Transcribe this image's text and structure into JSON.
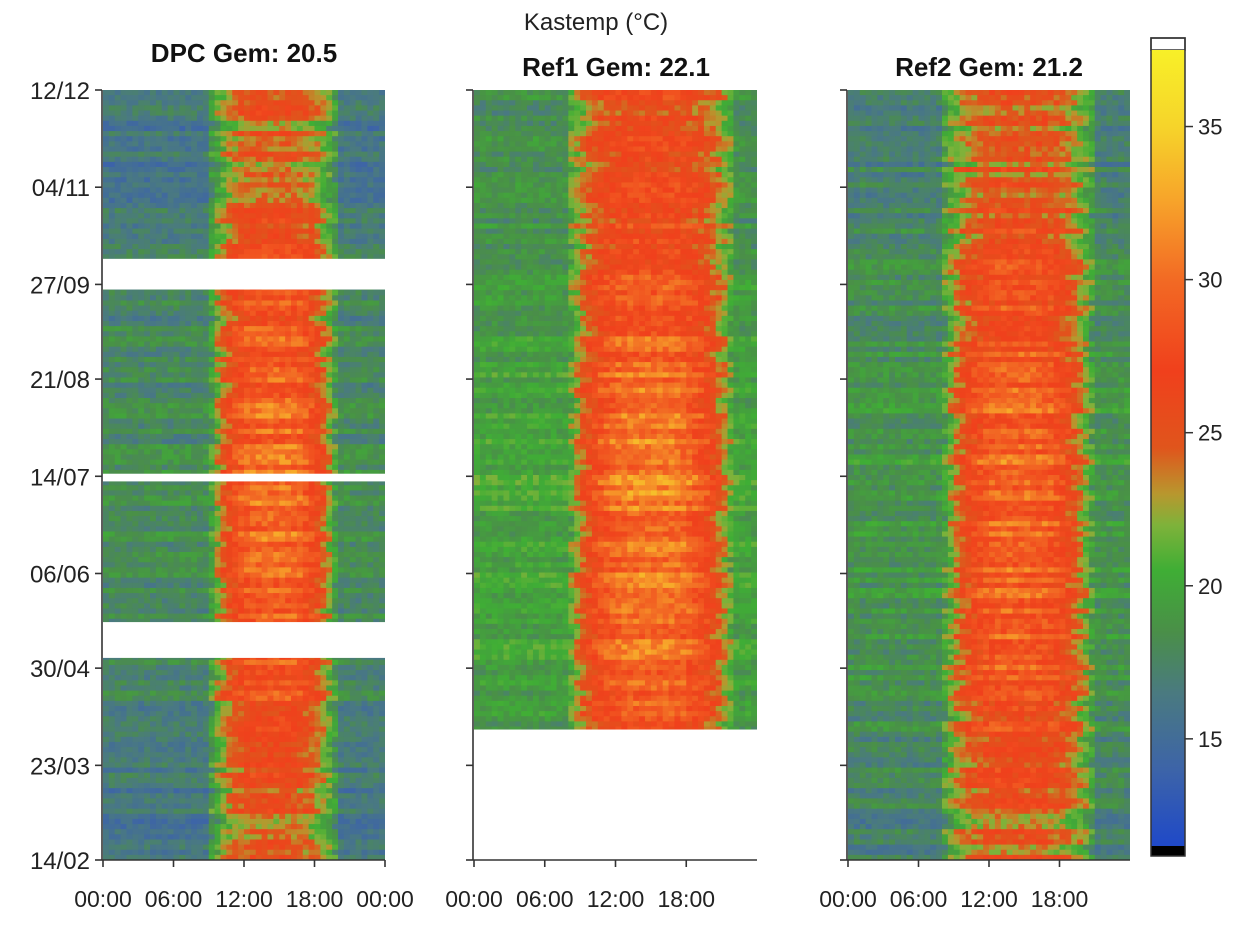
{
  "colorbar": {
    "label": "Kastemp (°C)",
    "range": [
      11.5,
      37.5
    ],
    "ticks": [
      15,
      20,
      25,
      30,
      35
    ],
    "colors": [
      "#1f49c8",
      "#3d64a8",
      "#4a7a80",
      "#4a8f48",
      "#3fae35",
      "#7fb23a",
      "#b8972e",
      "#e0551c",
      "#f0401c",
      "#f26a24",
      "#f7a22a",
      "#f6d42a",
      "#f8f028"
    ],
    "colorStops": [
      11.5,
      14,
      16.5,
      18.5,
      20.5,
      22,
      23,
      24.5,
      27,
      30,
      32.5,
      35,
      37.5
    ],
    "bottomCap": "#000000",
    "topCap": "#ffffff"
  },
  "yaxis": {
    "ticks": [
      "12/12",
      "04/11",
      "27/09",
      "21/08",
      "14/07",
      "06/06",
      "30/04",
      "23/03",
      "14/02"
    ]
  },
  "chart_data": [
    {
      "type": "heatmap",
      "title": "DPC Gem: 20.5",
      "mean": 20.5,
      "xticks": [
        "00:00",
        "06:00",
        "12:00",
        "18:00",
        "00:00"
      ],
      "xlim": [
        0,
        24
      ],
      "yticks": [
        "14/02",
        "23/03",
        "30/04",
        "06/06",
        "14/07",
        "21/08",
        "27/09",
        "04/11",
        "12/12"
      ],
      "ylim": [
        "14/02",
        "12/12"
      ],
      "gaps": [
        [
          "04/05",
          "18/05"
        ],
        [
          "12/07",
          "15/07"
        ],
        [
          "25/09",
          "07/10"
        ]
      ],
      "peak_band_hours": [
        9,
        20
      ],
      "base_temp": 18,
      "peak_temp": 30
    },
    {
      "type": "heatmap",
      "title": "Ref1 Gem: 22.1",
      "mean": 22.1,
      "xticks": [
        "00:00",
        "06:00",
        "12:00",
        "18:00"
      ],
      "xlim": [
        0,
        24
      ],
      "yticks": [
        "14/02",
        "23/03",
        "30/04",
        "06/06",
        "14/07",
        "21/08",
        "27/09",
        "04/11",
        "12/12"
      ],
      "ylim": [
        "14/02",
        "12/12"
      ],
      "no_data": [
        [
          "14/02",
          "06/04"
        ]
      ],
      "peak_band_hours": [
        8,
        22
      ],
      "base_temp": 20,
      "peak_temp": 31
    },
    {
      "type": "heatmap",
      "title": "Ref2 Gem: 21.2",
      "mean": 21.2,
      "xticks": [
        "00:00",
        "06:00",
        "12:00",
        "18:00"
      ],
      "xlim": [
        0,
        24
      ],
      "yticks": [
        "14/02",
        "23/03",
        "30/04",
        "06/06",
        "14/07",
        "21/08",
        "27/09",
        "04/11",
        "12/12"
      ],
      "ylim": [
        "14/02",
        "12/12"
      ],
      "peak_band_hours": [
        8,
        21
      ],
      "base_temp": 19,
      "peak_temp": 30
    }
  ]
}
